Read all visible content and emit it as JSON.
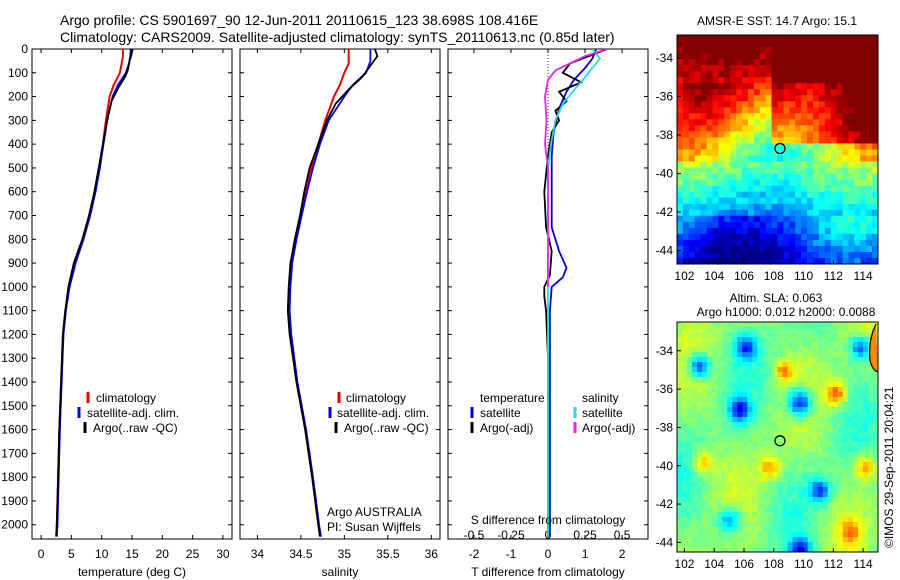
{
  "header": {
    "line1": "Argo profile: CS 5901697_90 12-Jun-2011 20110615_123 38.698S 108.416E",
    "line2": "Climatology: CARS2009. Satellite-adjusted climatology: synTS_20110613.nc (0.85d later)"
  },
  "depth_axis": {
    "ticks": [
      "0",
      "100",
      "200",
      "300",
      "400",
      "500",
      "600",
      "700",
      "800",
      "900",
      "1000",
      "1100",
      "1200",
      "1300",
      "1400",
      "1500",
      "1600",
      "1700",
      "1800",
      "1900",
      "2000"
    ],
    "range": [
      0,
      2060
    ]
  },
  "colors": {
    "climatology": "#ee0000",
    "satellite": "#0000dd",
    "argo": "#000000",
    "sal_satellite": "#22dddd",
    "sal_argo": "#ee22ee",
    "sst_warm": "#a80000",
    "sla_base": "#22bb22"
  },
  "chart_data": [
    {
      "type": "line",
      "id": "temperature",
      "xlabel": "temperature (deg C)",
      "xlim": [
        -1.5,
        31.5
      ],
      "xticks": [
        "0",
        "5",
        "10",
        "15",
        "20",
        "25",
        "30"
      ],
      "legend": [
        "climatology",
        "satellite-adj. clim.",
        "Argo(..raw -QC)"
      ],
      "series": [
        {
          "name": "climatology",
          "points": [
            [
              13.5,
              0
            ],
            [
              13.5,
              30
            ],
            [
              13.3,
              60
            ],
            [
              13.0,
              100
            ],
            [
              12.0,
              150
            ],
            [
              11.3,
              200
            ],
            [
              10.7,
              300
            ],
            [
              10.2,
              400
            ],
            [
              9.6,
              500
            ],
            [
              8.9,
              600
            ],
            [
              8.0,
              700
            ],
            [
              6.9,
              800
            ],
            [
              5.6,
              900
            ],
            [
              4.6,
              1000
            ],
            [
              4.0,
              1100
            ],
            [
              3.6,
              1200
            ],
            [
              3.3,
              1400
            ],
            [
              3.0,
              1600
            ],
            [
              2.8,
              1800
            ],
            [
              2.6,
              2000
            ],
            [
              2.5,
              2050
            ]
          ]
        },
        {
          "name": "satellite-adj. clim.",
          "points": [
            [
              14.8,
              0
            ],
            [
              14.7,
              30
            ],
            [
              14.5,
              60
            ],
            [
              14.0,
              100
            ],
            [
              12.7,
              150
            ],
            [
              11.8,
              200
            ],
            [
              10.9,
              300
            ],
            [
              10.3,
              400
            ],
            [
              9.7,
              500
            ],
            [
              9.0,
              600
            ],
            [
              8.1,
              700
            ],
            [
              7.0,
              800
            ],
            [
              5.7,
              900
            ],
            [
              4.7,
              1000
            ],
            [
              4.1,
              1100
            ],
            [
              3.7,
              1200
            ],
            [
              3.4,
              1400
            ],
            [
              3.1,
              1600
            ],
            [
              2.9,
              1800
            ],
            [
              2.7,
              2000
            ],
            [
              2.6,
              2050
            ]
          ]
        },
        {
          "name": "Argo(..raw -QC)",
          "points": [
            [
              15.1,
              0
            ],
            [
              14.9,
              25
            ],
            [
              14.6,
              50
            ],
            [
              14.3,
              90
            ],
            [
              13.8,
              120
            ],
            [
              12.8,
              160
            ],
            [
              11.6,
              220
            ],
            [
              10.9,
              300
            ],
            [
              10.2,
              400
            ],
            [
              9.5,
              500
            ],
            [
              8.8,
              600
            ],
            [
              7.9,
              700
            ],
            [
              6.8,
              800
            ],
            [
              5.4,
              900
            ],
            [
              4.5,
              1000
            ],
            [
              4.0,
              1100
            ],
            [
              3.6,
              1200
            ],
            [
              3.3,
              1400
            ],
            [
              3.0,
              1600
            ],
            [
              2.8,
              1800
            ],
            [
              2.6,
              2000
            ],
            [
              2.5,
              2050
            ]
          ]
        }
      ]
    },
    {
      "type": "line",
      "id": "salinity",
      "xlabel": "salinity",
      "xlim": [
        33.8,
        36.1
      ],
      "xticks": [
        "34",
        "34.5",
        "35",
        "35.5",
        "36"
      ],
      "legend": [
        "climatology",
        "satellite-adj. clim.",
        "Argo(..raw -QC)"
      ],
      "annotation": [
        "Argo AUSTRALIA",
        "PI: Susan Wijffels"
      ],
      "series": [
        {
          "name": "climatology",
          "points": [
            [
              35.05,
              0
            ],
            [
              35.05,
              60
            ],
            [
              35.0,
              100
            ],
            [
              34.95,
              150
            ],
            [
              34.88,
              200
            ],
            [
              34.78,
              300
            ],
            [
              34.7,
              400
            ],
            [
              34.62,
              500
            ],
            [
              34.55,
              600
            ],
            [
              34.5,
              700
            ],
            [
              34.44,
              800
            ],
            [
              34.39,
              900
            ],
            [
              34.37,
              1000
            ],
            [
              34.36,
              1100
            ],
            [
              34.38,
              1200
            ],
            [
              34.45,
              1400
            ],
            [
              34.55,
              1600
            ],
            [
              34.63,
              1800
            ],
            [
              34.7,
              2000
            ],
            [
              34.72,
              2050
            ]
          ]
        },
        {
          "name": "satellite-adj. clim.",
          "points": [
            [
              35.3,
              0
            ],
            [
              35.3,
              50
            ],
            [
              35.25,
              100
            ],
            [
              35.1,
              150
            ],
            [
              35.0,
              200
            ],
            [
              34.82,
              300
            ],
            [
              34.72,
              400
            ],
            [
              34.64,
              500
            ],
            [
              34.57,
              600
            ],
            [
              34.51,
              700
            ],
            [
              34.45,
              800
            ],
            [
              34.4,
              900
            ],
            [
              34.38,
              1000
            ],
            [
              34.37,
              1100
            ],
            [
              34.39,
              1200
            ],
            [
              34.46,
              1400
            ],
            [
              34.56,
              1600
            ],
            [
              34.64,
              1800
            ],
            [
              34.71,
              2000
            ],
            [
              34.73,
              2050
            ]
          ]
        },
        {
          "name": "Argo(..raw -QC)",
          "points": [
            [
              35.35,
              0
            ],
            [
              35.38,
              30
            ],
            [
              35.3,
              70
            ],
            [
              35.2,
              120
            ],
            [
              35.05,
              170
            ],
            [
              34.9,
              230
            ],
            [
              34.8,
              300
            ],
            [
              34.7,
              400
            ],
            [
              34.6,
              500
            ],
            [
              34.54,
              600
            ],
            [
              34.49,
              700
            ],
            [
              34.43,
              800
            ],
            [
              34.38,
              900
            ],
            [
              34.36,
              1000
            ],
            [
              34.35,
              1100
            ],
            [
              34.37,
              1200
            ],
            [
              34.45,
              1400
            ],
            [
              34.55,
              1600
            ],
            [
              34.63,
              1800
            ],
            [
              34.7,
              2000
            ],
            [
              34.72,
              2050
            ]
          ]
        }
      ]
    },
    {
      "type": "line",
      "id": "differences",
      "xlabel": "T difference from climatology",
      "xlabel_top": "S difference from climatology",
      "xlim": [
        -2.7,
        2.7
      ],
      "xticks": [
        "-2",
        "-1",
        "0",
        "1",
        "2"
      ],
      "xticks_top": [
        "-0.5",
        "-0.25",
        "0",
        "0.25",
        "0.5"
      ],
      "legend_t_title": "temperature",
      "legend_s_title": "salinity",
      "legend_t": [
        "satellite",
        "Argo(-adj)"
      ],
      "legend_s": [
        "satellite",
        "Argo(-adj)"
      ],
      "series": [
        {
          "name": "T satellite",
          "points": [
            [
              1.3,
              0
            ],
            [
              1.2,
              40
            ],
            [
              1.0,
              80
            ],
            [
              0.7,
              130
            ],
            [
              0.5,
              180
            ],
            [
              0.3,
              250
            ],
            [
              0.15,
              350
            ],
            [
              0.1,
              450
            ],
            [
              0.1,
              550
            ],
            [
              0.1,
              650
            ],
            [
              0.1,
              750
            ],
            [
              0.3,
              850
            ],
            [
              0.5,
              920
            ],
            [
              0.4,
              960
            ],
            [
              0.1,
              1000
            ],
            [
              0.05,
              1100
            ],
            [
              0.05,
              1300
            ],
            [
              0.05,
              1600
            ],
            [
              0.05,
              2000
            ],
            [
              0.05,
              2050
            ]
          ]
        },
        {
          "name": "T Argo(-adj)",
          "points": [
            [
              1.6,
              0
            ],
            [
              1.1,
              30
            ],
            [
              0.6,
              60
            ],
            [
              0.4,
              100
            ],
            [
              0.9,
              140
            ],
            [
              0.3,
              180
            ],
            [
              0.5,
              220
            ],
            [
              0.2,
              260
            ],
            [
              0.3,
              300
            ],
            [
              0.1,
              350
            ],
            [
              0.0,
              450
            ],
            [
              -0.1,
              600
            ],
            [
              -0.05,
              750
            ],
            [
              0.1,
              850
            ],
            [
              0.05,
              950
            ],
            [
              -0.1,
              1000
            ],
            [
              -0.1,
              1040
            ],
            [
              -0.05,
              1100
            ],
            [
              0.0,
              1300
            ],
            [
              0.0,
              1600
            ],
            [
              0.0,
              2000
            ],
            [
              0.0,
              2050
            ]
          ]
        },
        {
          "name": "S satellite",
          "points": [
            [
              0.3,
              0
            ],
            [
              0.35,
              40
            ],
            [
              0.3,
              80
            ],
            [
              0.25,
              120
            ],
            [
              0.18,
              170
            ],
            [
              0.1,
              230
            ],
            [
              0.05,
              300
            ],
            [
              0.02,
              400
            ],
            [
              0.0,
              500
            ],
            [
              0.0,
              650
            ],
            [
              0.0,
              800
            ],
            [
              0.0,
              1000
            ],
            [
              0.0,
              1300
            ],
            [
              0.0,
              1600
            ],
            [
              0.0,
              2000
            ],
            [
              0.0,
              2050
            ]
          ]
        },
        {
          "name": "S Argo(-adj)",
          "points": [
            [
              0.4,
              0
            ],
            [
              0.25,
              30
            ],
            [
              0.15,
              60
            ],
            [
              0.05,
              90
            ],
            [
              0.0,
              130
            ],
            [
              -0.02,
              200
            ],
            [
              -0.01,
              300
            ],
            [
              -0.02,
              400
            ],
            [
              0.0,
              500
            ],
            [
              0.0,
              600
            ],
            [
              0.0,
              800
            ],
            [
              0.0,
              1000
            ]
          ]
        }
      ]
    },
    {
      "type": "heatmap",
      "id": "sst_map",
      "title": "AMSR-E SST: 14.7 Argo: 15.1",
      "xticks": [
        "102",
        "104",
        "106",
        "108",
        "110",
        "112",
        "114"
      ],
      "yticks": [
        "-34",
        "-36",
        "-38",
        "-40",
        "-42",
        "-44"
      ],
      "xlim": [
        101.5,
        115
      ],
      "ylim": [
        -44.7,
        -32.8
      ],
      "marker": {
        "lon": 108.416,
        "lat": -38.698
      }
    },
    {
      "type": "heatmap",
      "id": "sla_map",
      "title1": "Altim. SLA: 0.063",
      "title2": "Argo h1000: 0.012 h2000: 0.0088",
      "xticks": [
        "102",
        "104",
        "106",
        "108",
        "110",
        "112",
        "114"
      ],
      "yticks": [
        "-34",
        "-36",
        "-38",
        "-40",
        "-42",
        "-44"
      ],
      "xlim": [
        101.5,
        115
      ],
      "ylim": [
        -44.5,
        -32.5
      ],
      "marker": {
        "lon": 108.416,
        "lat": -38.698
      }
    }
  ],
  "credit": "©IMOS 29-Sep-2011 20:04:21"
}
